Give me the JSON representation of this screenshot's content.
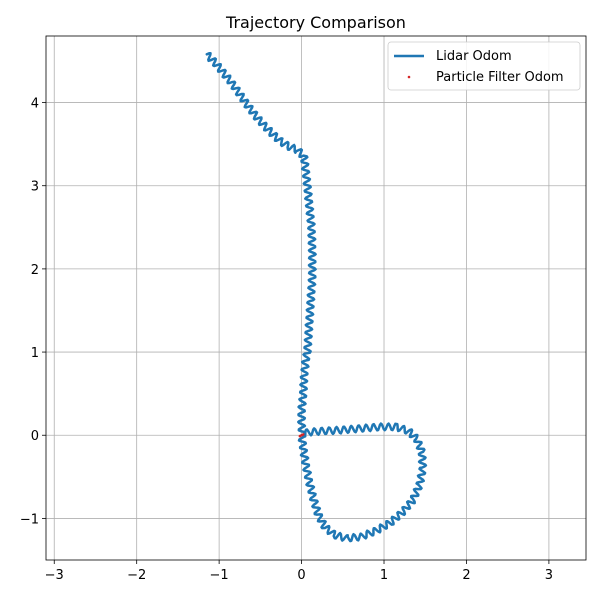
{
  "chart_data": {
    "type": "line",
    "title": "Trajectory Comparison",
    "xlabel": "",
    "ylabel": "",
    "xlim": [
      -3.1,
      3.45
    ],
    "ylim": [
      -1.5,
      4.8
    ],
    "xticks": [
      -3,
      -2,
      -1,
      0,
      1,
      2,
      3
    ],
    "yticks": [
      -1,
      0,
      1,
      2,
      3,
      4
    ],
    "xtick_labels": [
      "−3",
      "−2",
      "−1",
      "0",
      "1",
      "2",
      "3"
    ],
    "ytick_labels": [
      "−1",
      "0",
      "1",
      "2",
      "3",
      "4"
    ],
    "grid": true,
    "legend_position": "top-right",
    "series": [
      {
        "name": "Lidar Odom",
        "color": "#1f77b4",
        "style": "line",
        "x": [
          -1.15,
          -1.05,
          -0.95,
          -0.85,
          -0.75,
          -0.65,
          -0.55,
          -0.45,
          -0.35,
          -0.25,
          -0.15,
          -0.05,
          0.03,
          0.06,
          0.09,
          0.12,
          0.13,
          0.13,
          0.11,
          0.09,
          0.07,
          0.05,
          0.03,
          0.02,
          0.0,
          0.0,
          0.01,
          0.03,
          0.06,
          0.12,
          0.25,
          0.45,
          0.7,
          0.95,
          1.15,
          1.3,
          1.4,
          1.46,
          1.47,
          1.43,
          1.35,
          1.23,
          1.08,
          0.9,
          0.72,
          0.55,
          0.4,
          0.28,
          0.2,
          0.14,
          0.09,
          0.05,
          0.02,
          0.0
        ],
        "y": [
          4.58,
          4.48,
          4.36,
          4.24,
          4.1,
          3.96,
          3.83,
          3.72,
          3.62,
          3.53,
          3.47,
          3.43,
          3.35,
          3.1,
          2.8,
          2.5,
          2.2,
          1.9,
          1.6,
          1.3,
          1.0,
          0.9,
          0.7,
          0.5,
          0.3,
          0.1,
          0.0,
          0.02,
          0.03,
          0.04,
          0.05,
          0.06,
          0.08,
          0.1,
          0.1,
          0.05,
          -0.05,
          -0.2,
          -0.4,
          -0.6,
          -0.78,
          -0.92,
          -1.05,
          -1.15,
          -1.22,
          -1.24,
          -1.2,
          -1.1,
          -0.95,
          -0.75,
          -0.55,
          -0.35,
          -0.15,
          0.0
        ],
        "wobble_amplitude": 0.04
      },
      {
        "name": "Particle Filter Odom",
        "color": "#d62728",
        "style": "points",
        "x": [
          0.0,
          0.02,
          -0.02
        ],
        "y": [
          0.0,
          0.01,
          -0.01
        ]
      }
    ]
  }
}
